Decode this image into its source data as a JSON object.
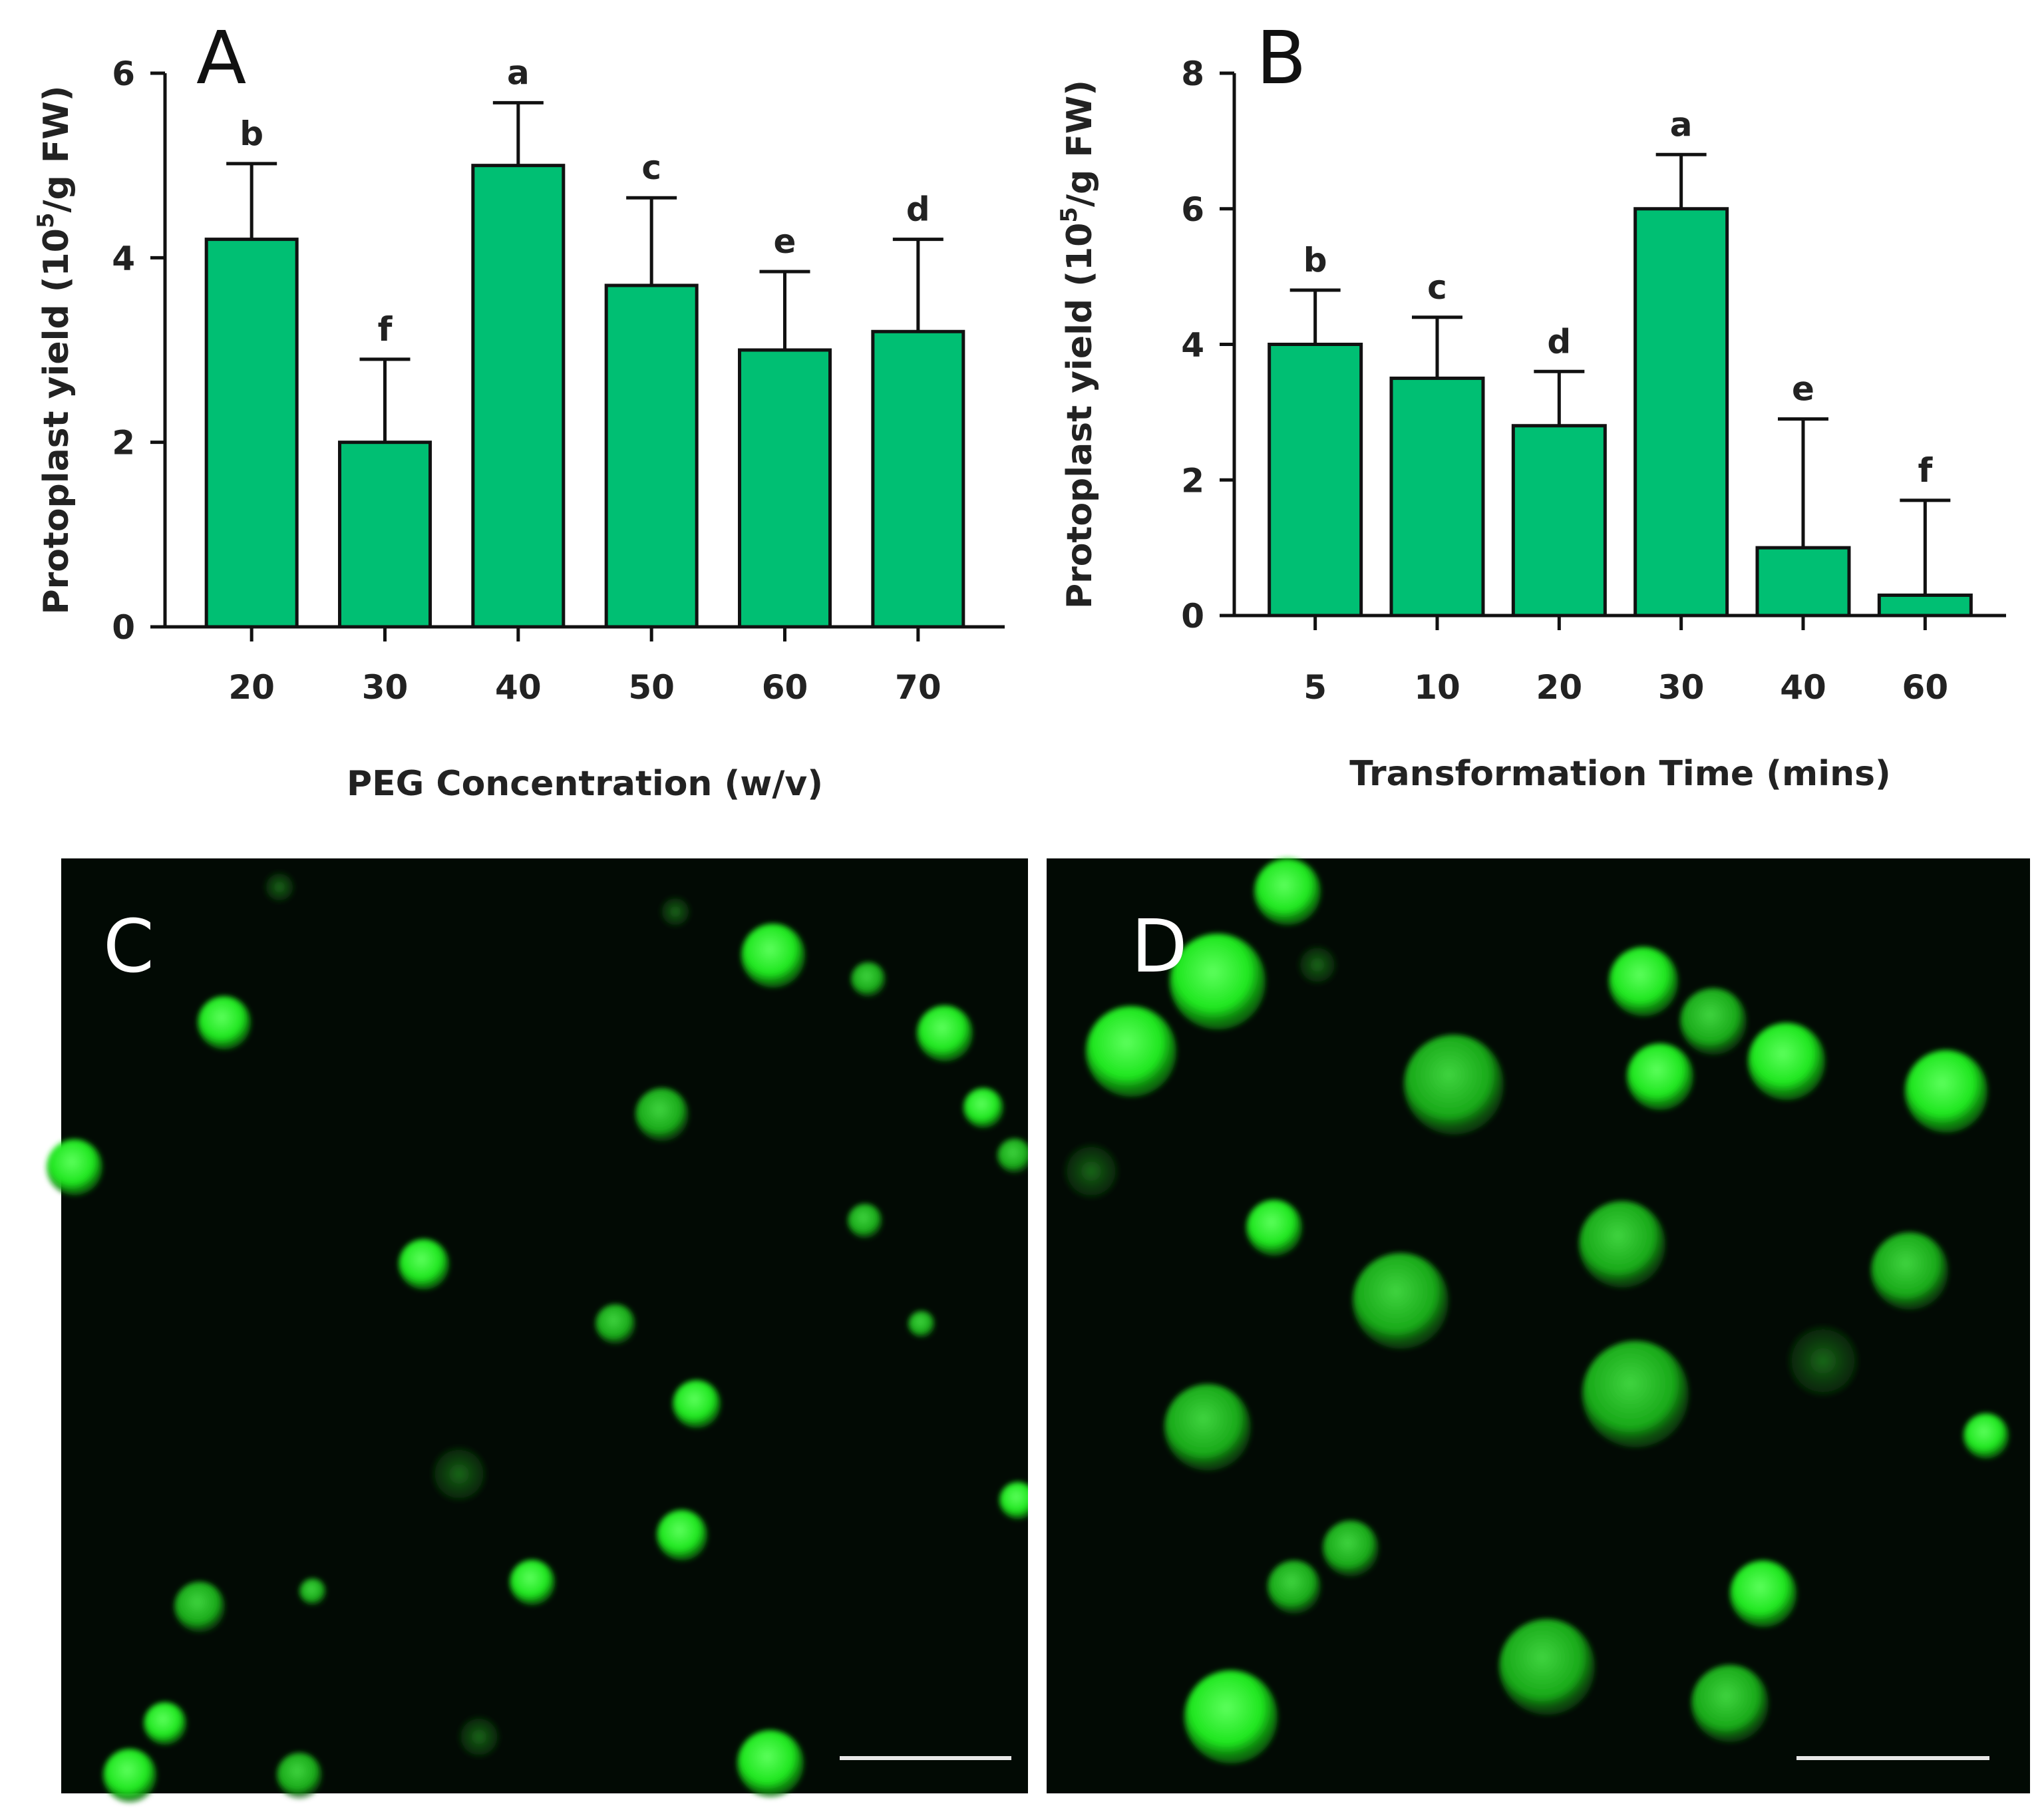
{
  "panels": {
    "A": {
      "letter": "A"
    },
    "B": {
      "letter": "B"
    },
    "C": {
      "letter": "C"
    },
    "D": {
      "letter": "D"
    }
  },
  "chart_data": [
    {
      "panel": "A",
      "type": "bar",
      "categories": [
        "20",
        "30",
        "40",
        "50",
        "60",
        "70"
      ],
      "values": [
        4.2,
        2.0,
        5.0,
        3.7,
        3.0,
        3.2
      ],
      "errors": [
        0.82,
        0.9,
        0.68,
        0.95,
        0.85,
        1.0
      ],
      "significance": [
        "b",
        "f",
        "a",
        "c",
        "e",
        "d"
      ],
      "xlabel": "PEG Concentration (w/v)",
      "ylabel_prefix": "Protoplast yield (10",
      "ylabel_sup": "5",
      "ylabel_suffix": "/g FW)",
      "ylim": [
        0,
        6
      ],
      "yticks": [
        "0",
        "2",
        "4",
        "6"
      ],
      "bar_color": "#00bf73"
    },
    {
      "panel": "B",
      "type": "bar",
      "categories": [
        "5",
        "10",
        "20",
        "30",
        "40",
        "60"
      ],
      "values": [
        4.0,
        3.5,
        2.8,
        6.0,
        1.0,
        0.3
      ],
      "errors": [
        0.8,
        0.9,
        0.8,
        0.8,
        1.9,
        1.4
      ],
      "significance": [
        "b",
        "c",
        "d",
        "a",
        "e",
        "f"
      ],
      "xlabel": "Transformation Time (mins)",
      "ylabel_prefix": "Protoplast yield (10",
      "ylabel_sup": "5",
      "ylabel_suffix": "/g FW)",
      "ylim": [
        0,
        8
      ],
      "yticks": [
        "0",
        "2",
        "4",
        "6",
        "8"
      ],
      "bar_color": "#00bf73"
    }
  ]
}
